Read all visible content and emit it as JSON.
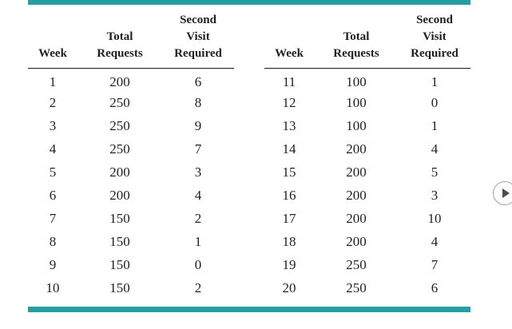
{
  "accent_color": "#259fa3",
  "text_color": "#231f20",
  "left_table": {
    "columns": [
      [
        "Week"
      ],
      [
        "Total",
        "Requests"
      ],
      [
        "Second",
        "Visit",
        "Required"
      ]
    ],
    "rows": [
      [
        1,
        200,
        6
      ],
      [
        2,
        250,
        8
      ],
      [
        3,
        250,
        9
      ],
      [
        4,
        250,
        7
      ],
      [
        5,
        200,
        3
      ],
      [
        6,
        200,
        4
      ],
      [
        7,
        150,
        2
      ],
      [
        8,
        150,
        1
      ],
      [
        9,
        150,
        0
      ],
      [
        10,
        150,
        2
      ]
    ]
  },
  "right_table": {
    "columns": [
      [
        "Week"
      ],
      [
        "Total",
        "Requests"
      ],
      [
        "Second",
        "Visit",
        "Required"
      ]
    ],
    "rows": [
      [
        11,
        100,
        1
      ],
      [
        12,
        100,
        0
      ],
      [
        13,
        100,
        1
      ],
      [
        14,
        200,
        4
      ],
      [
        15,
        200,
        5
      ],
      [
        16,
        200,
        3
      ],
      [
        17,
        200,
        10
      ],
      [
        18,
        200,
        4
      ],
      [
        19,
        250,
        7
      ],
      [
        20,
        250,
        6
      ]
    ]
  },
  "next_button": {
    "icon": "play-right"
  }
}
